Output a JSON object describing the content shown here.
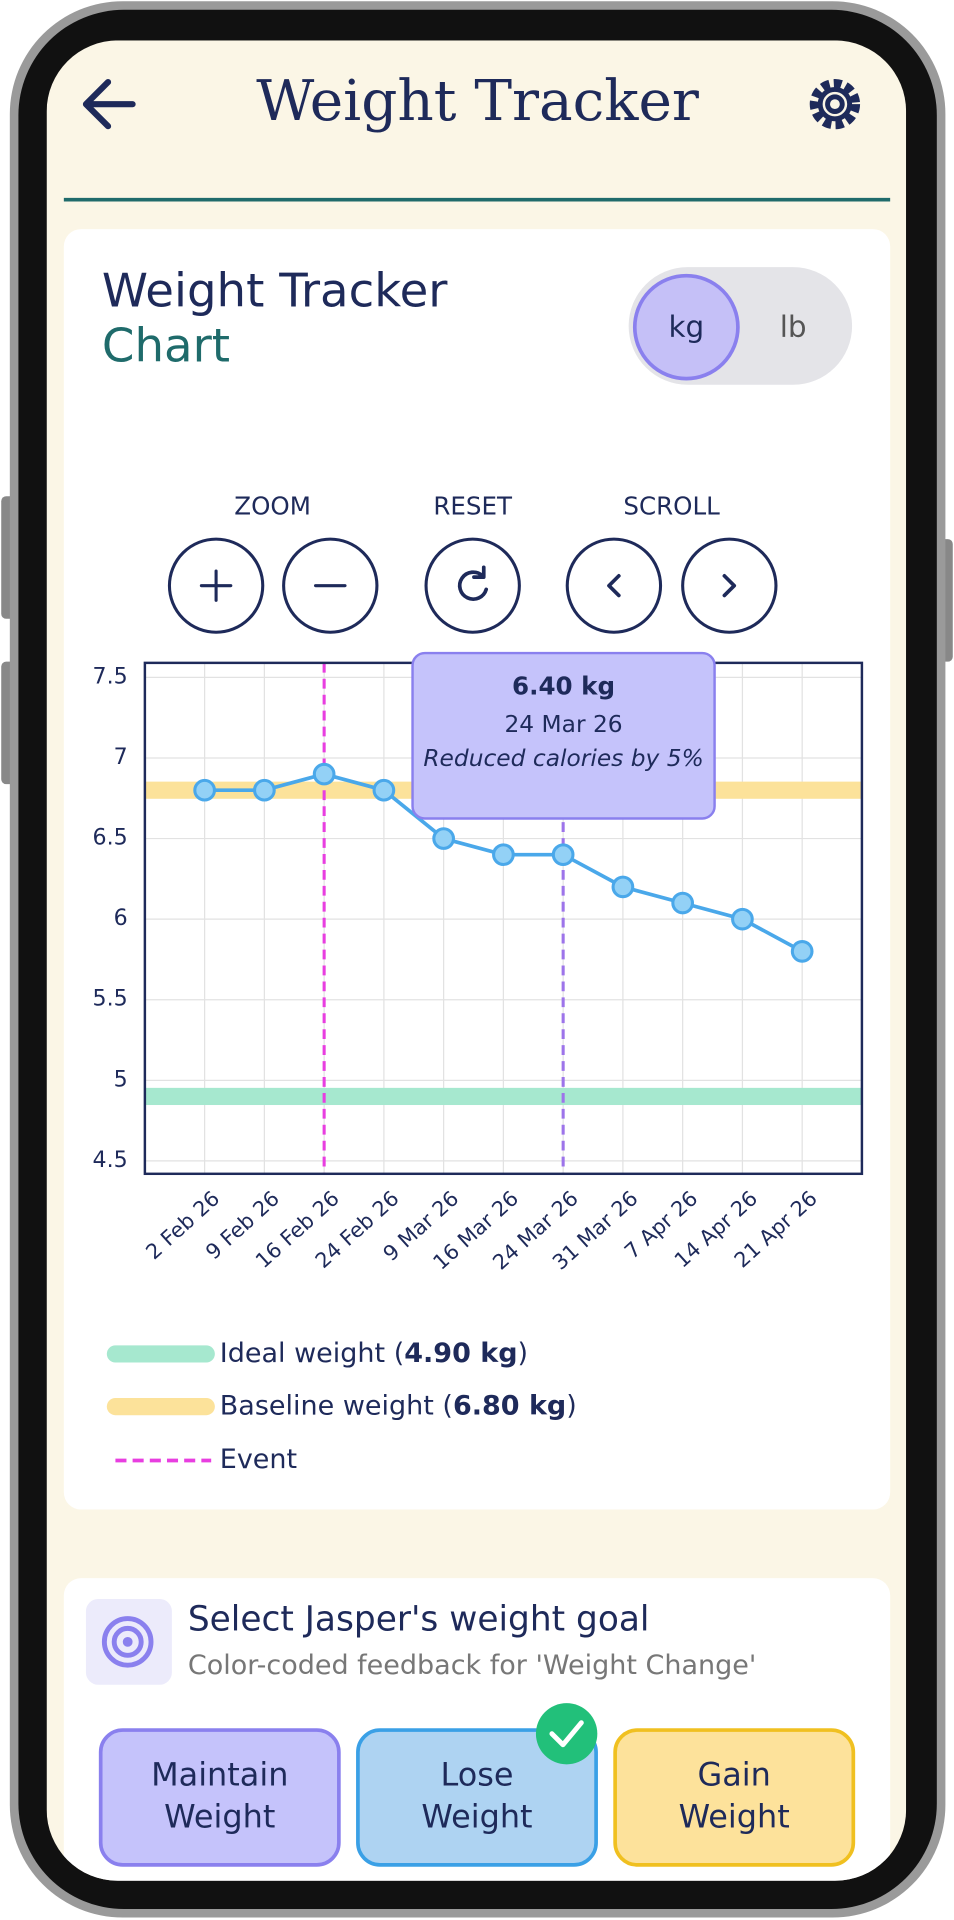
{
  "header": {
    "title": "Weight Tracker"
  },
  "card": {
    "title": "Weight Tracker",
    "subtitle": "Chart",
    "units": [
      "kg",
      "lb"
    ],
    "selected_unit": 0
  },
  "controls": {
    "zoom": "ZOOM",
    "reset": "RESET",
    "scroll": "SCROLL"
  },
  "chart_data": {
    "type": "line",
    "categories": [
      "2 Feb 26",
      "9 Feb 26",
      "16 Feb 26",
      "24 Feb 26",
      "9 Mar 26",
      "16 Mar 26",
      "24 Mar 26",
      "31 Mar 26",
      "7 Apr 26",
      "14 Apr 26",
      "21 Apr 26"
    ],
    "values": [
      6.8,
      6.8,
      6.9,
      6.8,
      6.5,
      6.4,
      6.4,
      6.2,
      6.1,
      6.0,
      5.8
    ],
    "color": "#4aa8ea",
    "point_fill": "#93d1f6",
    "ylim": [
      4.42,
      7.59
    ],
    "yticks": [
      4.5,
      5,
      5.5,
      6,
      6.5,
      7,
      7.5
    ],
    "grid": true,
    "reference_lines": [
      {
        "value": 4.9,
        "color": "#a6e8cf",
        "legend": [
          "Ideal weight (",
          "4.90 kg",
          ")"
        ]
      },
      {
        "value": 6.8,
        "color": "#fce29a",
        "legend": [
          "Baseline weight (",
          "6.80 kg",
          ")"
        ]
      }
    ],
    "events": {
      "label": "Event",
      "color": "#e83ee0",
      "items": [
        {
          "date": "16 Feb 26",
          "color": "#e83ee0"
        },
        {
          "date": "24 Mar 26",
          "color": "#9d74ea"
        }
      ]
    },
    "tooltip": {
      "date": "24 Mar 26",
      "value_label": "6.40 kg",
      "note": "Reduced calories by 5%"
    }
  },
  "goal": {
    "title": "Select Jasper's weight goal",
    "subtitle": "Color-coded feedback for 'Weight Change'",
    "options": [
      {
        "lines": [
          "Maintain",
          "Weight"
        ]
      },
      {
        "lines": [
          "Lose",
          "Weight"
        ]
      },
      {
        "lines": [
          "Gain",
          "Weight"
        ]
      }
    ],
    "selected": 1
  }
}
